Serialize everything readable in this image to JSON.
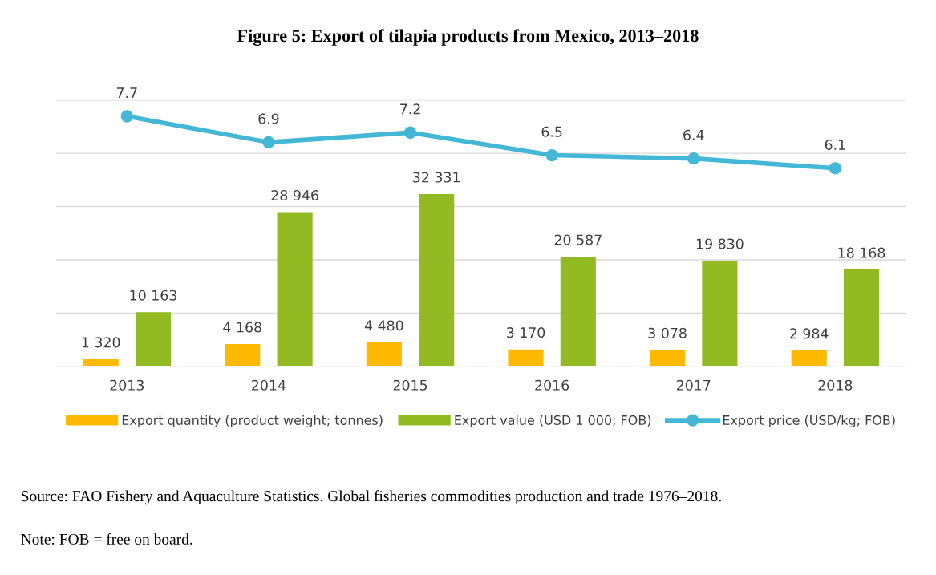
{
  "chart_data": {
    "type": "bar",
    "title": "Figure 5: Export of tilapia products from Mexico, 2013–2018",
    "categories": [
      "2013",
      "2014",
      "2015",
      "2016",
      "2017",
      "2018"
    ],
    "series": [
      {
        "name": "Export quantity (product weight; tonnes)",
        "color": "#ffb900",
        "values": [
          1320,
          4168,
          4480,
          3170,
          3078,
          2984
        ],
        "value_labels": [
          "1 320",
          "4 168",
          "4 480",
          "3 170",
          "3 078",
          "2 984"
        ]
      },
      {
        "name": "Export value (USD 1 000; FOB)",
        "color": "#92bb23",
        "values": [
          10163,
          28946,
          32331,
          20587,
          19830,
          18168
        ],
        "value_labels": [
          "10 163",
          "28 946",
          "32 331",
          "20 587",
          "19 830",
          "18 168"
        ]
      },
      {
        "name": "Export price (USD/kg; FOB)",
        "type": "line",
        "axis": "y2",
        "color": "#43b7d5",
        "values": [
          7.7,
          6.9,
          7.2,
          6.5,
          6.4,
          6.1
        ],
        "value_labels": [
          "7.7",
          "6.9",
          "7.2",
          "6.5",
          "6.4",
          "6.1"
        ]
      }
    ],
    "ylim": [
      0,
      50000
    ],
    "yticks": [
      {
        "value": 0,
        "label": null
      },
      {
        "value": 10000,
        "label": null
      },
      {
        "value": 20000,
        "label": null
      },
      {
        "value": 30000,
        "label": null
      },
      {
        "value": 40000,
        "label": null
      },
      {
        "value": 50000,
        "label": null
      }
    ],
    "y2lim": [
      0,
      8.2
    ],
    "tick_labels": "x",
    "grid": "y",
    "legend": "bottom",
    "marker": "circle",
    "annotations": [
      "Source: FAO Fishery and Aquaculture Statistics. Global fisheries commodities production and trade 1976–2018.",
      "Note: FOB = free on board."
    ]
  }
}
